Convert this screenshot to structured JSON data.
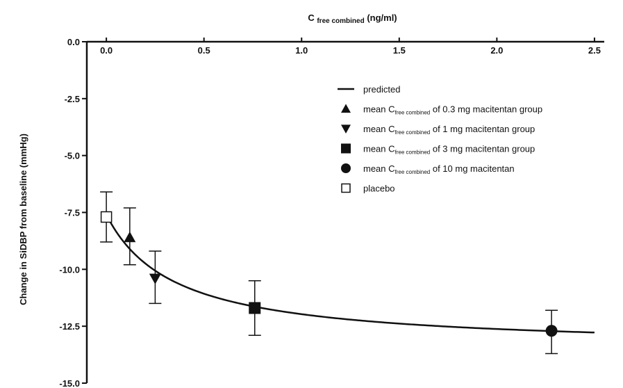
{
  "chart_data": {
    "type": "scatter",
    "x_axis": {
      "label_main": "C",
      "label_sub": "free combined",
      "label_unit": "(ng/ml)",
      "range": [
        -0.1,
        2.55
      ],
      "position": "top",
      "ticks": [
        "0.0",
        "0.5",
        "1.0",
        "1.5",
        "2.0",
        "2.5"
      ],
      "tick_values": [
        0.0,
        0.5,
        1.0,
        1.5,
        2.0,
        2.5
      ]
    },
    "y_axis": {
      "label": "Change in SiDBP from baseline (mmHg)",
      "range": [
        0.0,
        -15.0
      ],
      "ticks": [
        "0.0",
        "-2.5",
        "-5.0",
        "-7.5",
        "-10.0",
        "-12.5",
        "-15.0"
      ],
      "tick_values": [
        0.0,
        -2.5,
        -5.0,
        -7.5,
        -10.0,
        -12.5,
        -15.0
      ]
    },
    "predicted": {
      "name": "predicted",
      "model": "emax",
      "e0": -7.6,
      "emax": -5.9,
      "ec50": 0.35,
      "x_range": [
        0.0,
        2.5
      ]
    },
    "points": [
      {
        "x": 0.0,
        "y": -7.7,
        "err_low": -8.8,
        "err_high": -6.6,
        "marker": "square-open"
      },
      {
        "x": 0.12,
        "y": -8.6,
        "err_low": -9.8,
        "err_high": -7.3,
        "marker": "triangle-up"
      },
      {
        "x": 0.25,
        "y": -10.4,
        "err_low": -11.5,
        "err_high": -9.2,
        "marker": "triangle-down"
      },
      {
        "x": 0.76,
        "y": -11.7,
        "err_low": -12.9,
        "err_high": -10.5,
        "marker": "square"
      },
      {
        "x": 2.28,
        "y": -12.7,
        "err_low": -13.7,
        "err_high": -11.8,
        "marker": "circle"
      }
    ],
    "legend": {
      "placement": "top-right",
      "entries": [
        {
          "marker": "line",
          "pre": "predicted",
          "sub": "",
          "post": ""
        },
        {
          "marker": "triangle-up",
          "pre": "mean C",
          "sub": "free combined",
          "post": " of 0.3 mg macitentan group"
        },
        {
          "marker": "triangle-down",
          "pre": "mean C",
          "sub": "free combined",
          "post": " of 1 mg macitentan group"
        },
        {
          "marker": "square",
          "pre": "mean C",
          "sub": "free combined",
          "post": " of 3 mg macitentan group"
        },
        {
          "marker": "circle",
          "pre": "mean C",
          "sub": "free combined",
          "post": " of 10 mg macitentan"
        },
        {
          "marker": "square-open",
          "pre": "placebo",
          "sub": "",
          "post": ""
        }
      ]
    },
    "grid": false
  }
}
